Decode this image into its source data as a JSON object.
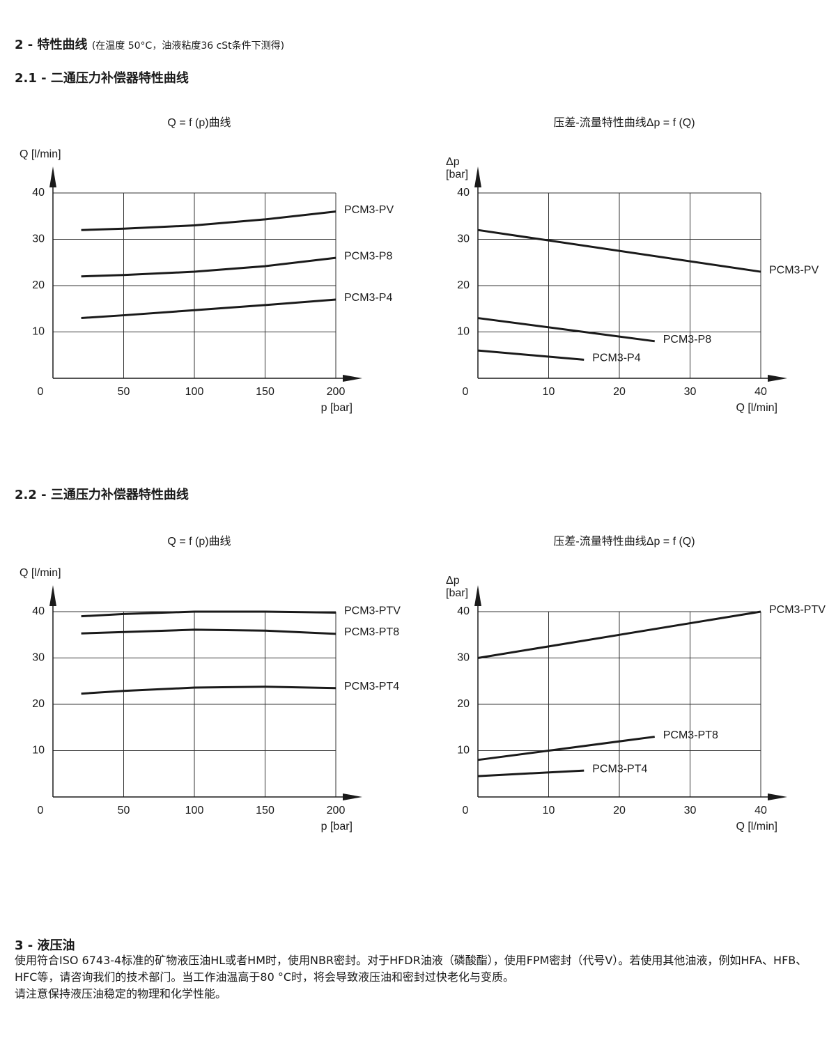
{
  "heading": "2 - 特性曲线",
  "heading_note": "(在温度 50°C，油液粘度36 cSt条件下测得)",
  "section_1": "2.1 - 二通压力补偿器特性曲线",
  "section_2": "2.2 - 三通压力补偿器特性曲线",
  "section_3": {
    "title": "3 - 液压油",
    "paragraphs": [
      "使用符合ISO 6743-4标准的矿物液压油HL或者HM时，使用NBR密封。对于HFDR油液（磷酸酯），使用FPM密封（代号V）。若使用其他油液，例如HFA、HFB、HFC等，请咨询我们的技术部门。当工作油温高于80 °C时，将会导致液压油和密封过快老化与变质。",
      "请注意保持液压油稳定的物理和化学性能。"
    ]
  },
  "chart_data": [
    {
      "type": "line",
      "title": "Q = f (p)曲线",
      "ylabel": [
        "Q [l/min]"
      ],
      "xlabel": "p [bar]",
      "xlim": [
        0,
        200
      ],
      "ylim": [
        0,
        40
      ],
      "xticks": [
        0,
        50,
        100,
        150,
        200
      ],
      "yticks": [
        10,
        20,
        30,
        40
      ],
      "grid": true,
      "series": [
        {
          "name": "PCM3-PV",
          "color": "#1a1a1a",
          "x": [
            20,
            50,
            100,
            150,
            200
          ],
          "values": [
            32,
            32.3,
            33,
            34.3,
            36
          ]
        },
        {
          "name": "PCM3-P8",
          "color": "#1a1a1a",
          "x": [
            20,
            50,
            100,
            150,
            200
          ],
          "values": [
            22,
            22.3,
            23,
            24.2,
            26
          ]
        },
        {
          "name": "PCM3-P4",
          "color": "#1a1a1a",
          "x": [
            20,
            50,
            100,
            150,
            200
          ],
          "values": [
            13,
            13.6,
            14.7,
            15.8,
            17
          ]
        }
      ]
    },
    {
      "type": "line",
      "title": "压差-流量特性曲线Δp = f (Q)",
      "ylabel": [
        "Δp",
        "[bar]"
      ],
      "xlabel": "Q [l/min]",
      "xlim": [
        0,
        40
      ],
      "ylim": [
        0,
        40
      ],
      "xticks": [
        0,
        10,
        20,
        30,
        40
      ],
      "yticks": [
        10,
        20,
        30,
        40
      ],
      "grid": true,
      "series": [
        {
          "name": "PCM3-PV",
          "color": "#1a1a1a",
          "x": [
            0,
            40
          ],
          "values": [
            32,
            23
          ]
        },
        {
          "name": "PCM3-P8",
          "color": "#1a1a1a",
          "x": [
            0,
            25
          ],
          "values": [
            13,
            8
          ]
        },
        {
          "name": "PCM3-P4",
          "color": "#1a1a1a",
          "x": [
            0,
            15
          ],
          "values": [
            6,
            4
          ]
        }
      ]
    },
    {
      "type": "line",
      "title": "Q = f (p)曲线",
      "ylabel": [
        "Q [l/min]"
      ],
      "xlabel": "p [bar]",
      "xlim": [
        0,
        200
      ],
      "ylim": [
        0,
        40
      ],
      "xticks": [
        0,
        50,
        100,
        150,
        200
      ],
      "yticks": [
        10,
        20,
        30,
        40
      ],
      "grid": true,
      "series": [
        {
          "name": "PCM3-PTV",
          "color": "#1a1a1a",
          "x": [
            20,
            50,
            100,
            150,
            200
          ],
          "values": [
            39,
            39.5,
            40,
            40,
            39.8
          ]
        },
        {
          "name": "PCM3-PT8",
          "color": "#1a1a1a",
          "x": [
            20,
            50,
            100,
            150,
            200
          ],
          "values": [
            35.3,
            35.6,
            36.1,
            35.9,
            35.2
          ]
        },
        {
          "name": "PCM3-PT4",
          "color": "#1a1a1a",
          "x": [
            20,
            50,
            100,
            150,
            200
          ],
          "values": [
            22.3,
            22.9,
            23.6,
            23.8,
            23.5
          ]
        }
      ]
    },
    {
      "type": "line",
      "title": "压差-流量特性曲线Δp = f (Q)",
      "ylabel": [
        "Δp",
        "[bar]"
      ],
      "xlabel": "Q [l/min]",
      "xlim": [
        0,
        40
      ],
      "ylim": [
        0,
        40
      ],
      "xticks": [
        0,
        10,
        20,
        30,
        40
      ],
      "yticks": [
        10,
        20,
        30,
        40
      ],
      "grid": true,
      "series": [
        {
          "name": "PCM3-PTV",
          "color": "#1a1a1a",
          "x": [
            0,
            40
          ],
          "values": [
            30,
            40
          ]
        },
        {
          "name": "PCM3-PT8",
          "color": "#1a1a1a",
          "x": [
            0,
            25
          ],
          "values": [
            8,
            13
          ]
        },
        {
          "name": "PCM3-PT4",
          "color": "#1a1a1a",
          "x": [
            0,
            15
          ],
          "values": [
            4.5,
            5.7
          ]
        }
      ]
    }
  ]
}
